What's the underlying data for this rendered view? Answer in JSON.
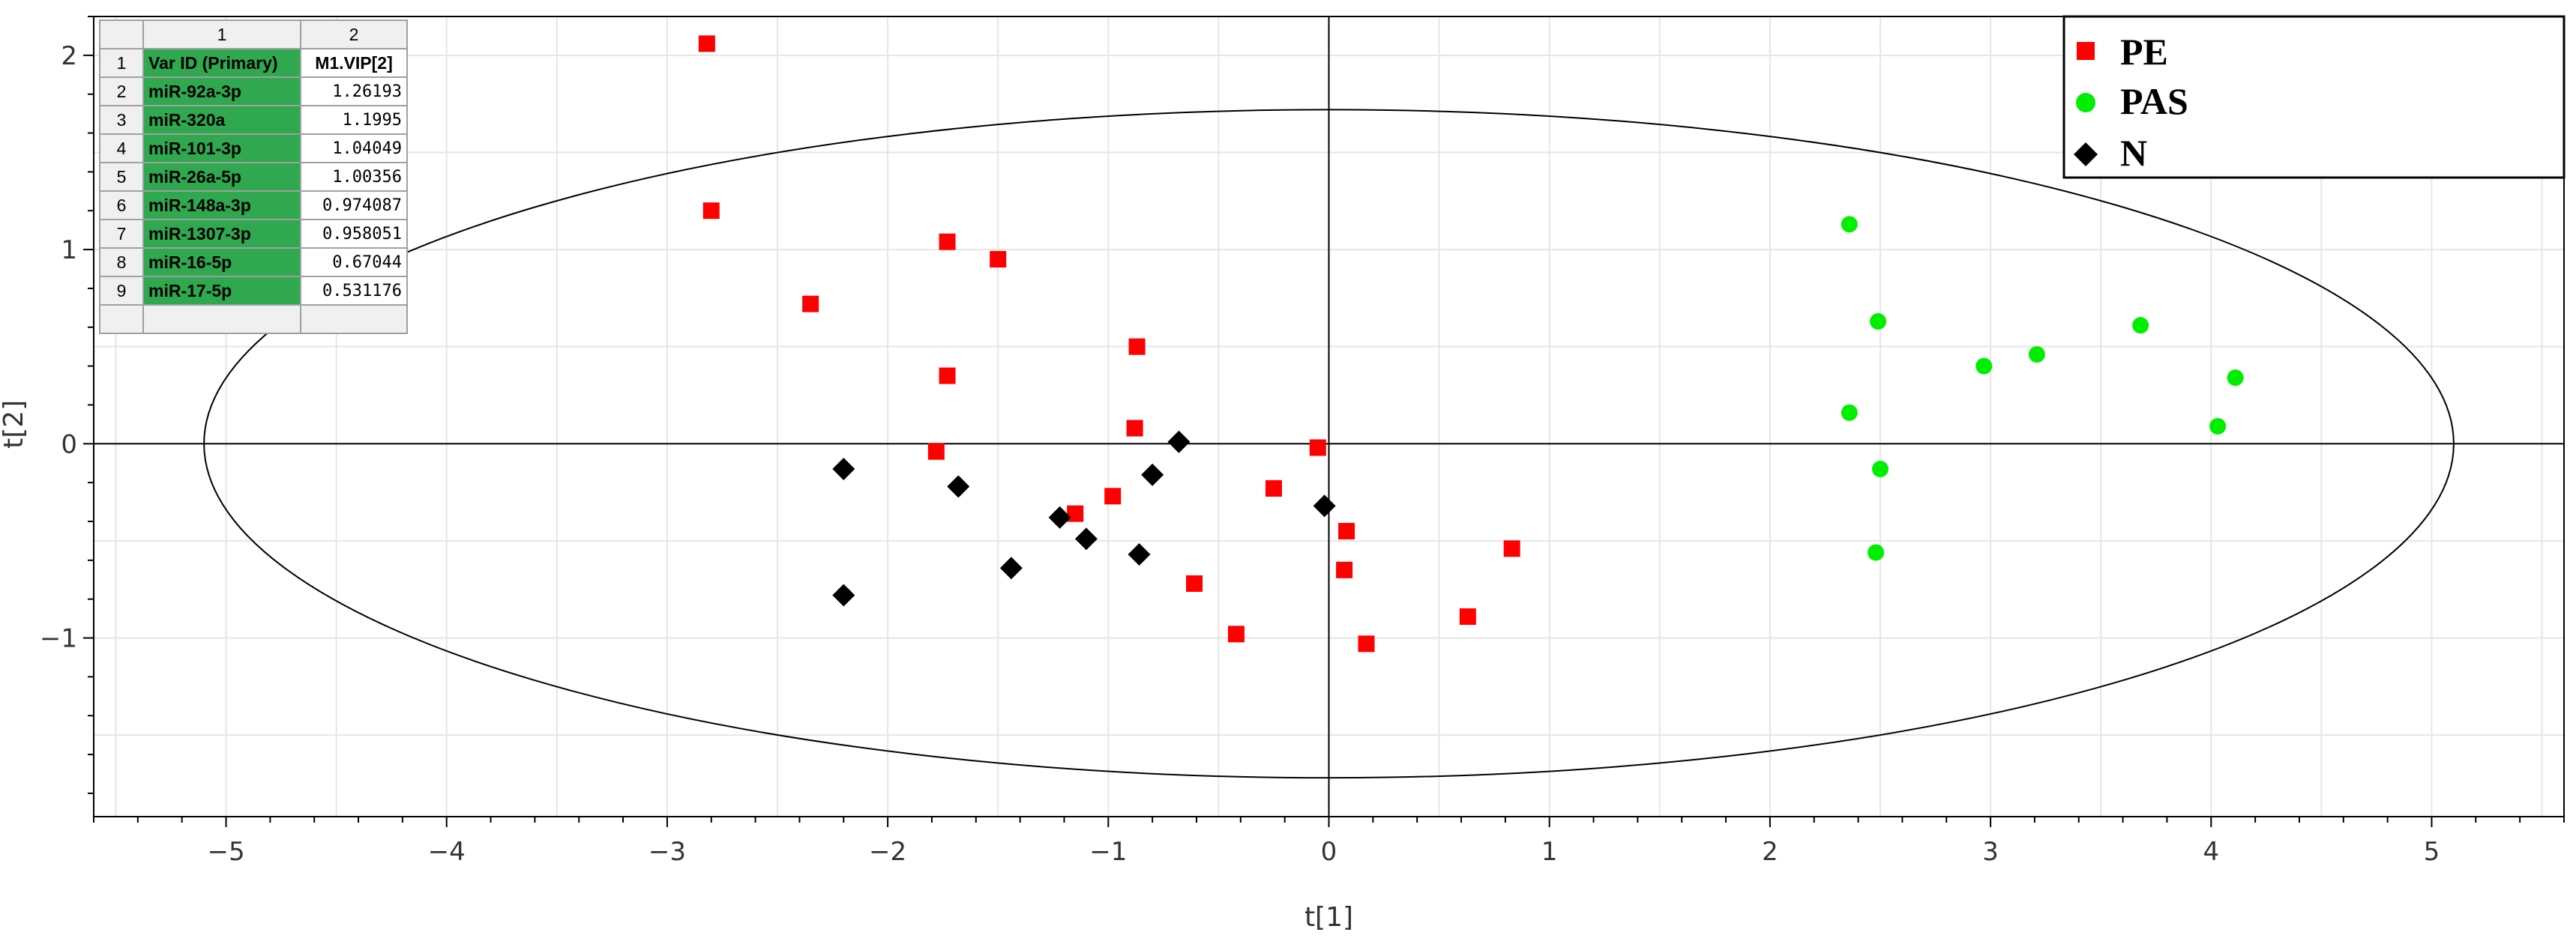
{
  "chart_data": {
    "type": "scatter",
    "xlabel": "t[1]",
    "ylabel": "t[2]",
    "xlim": [
      -5.6,
      5.6
    ],
    "ylim": [
      -1.92,
      2.2
    ],
    "x_ticks": [
      -5,
      -4,
      -3,
      -2,
      -1,
      0,
      1,
      2,
      3,
      4,
      5
    ],
    "y_ticks": [
      -1,
      0,
      1,
      2
    ],
    "x_tick_labels": [
      "−5",
      "−4",
      "−3",
      "−2",
      "−1",
      "0",
      "1",
      "2",
      "3",
      "4",
      "5"
    ],
    "y_tick_labels": [
      "−1",
      "0",
      "1",
      "2"
    ],
    "grid": true,
    "ellipse": {
      "rx": 5.1,
      "ry": 1.72
    },
    "legend_position": "top-right",
    "series": [
      {
        "name": "PE",
        "marker": "square",
        "color": "#ff0000",
        "points": [
          [
            -2.82,
            2.06
          ],
          [
            -2.8,
            1.2
          ],
          [
            -2.35,
            0.72
          ],
          [
            -1.73,
            1.04
          ],
          [
            -1.5,
            0.95
          ],
          [
            -1.73,
            0.35
          ],
          [
            -1.78,
            -0.04
          ],
          [
            -0.87,
            0.5
          ],
          [
            -0.88,
            0.08
          ],
          [
            -1.15,
            -0.36
          ],
          [
            -0.98,
            -0.27
          ],
          [
            -0.61,
            -0.72
          ],
          [
            -0.42,
            -0.98
          ],
          [
            -0.25,
            -0.23
          ],
          [
            -0.05,
            -0.02
          ],
          [
            0.08,
            -0.45
          ],
          [
            0.07,
            -0.65
          ],
          [
            0.17,
            -1.03
          ],
          [
            0.63,
            -0.89
          ],
          [
            0.83,
            -0.54
          ]
        ]
      },
      {
        "name": "PAS",
        "marker": "circle",
        "color": "#00ee00",
        "points": [
          [
            2.36,
            1.13
          ],
          [
            2.49,
            0.63
          ],
          [
            2.36,
            0.16
          ],
          [
            2.5,
            -0.13
          ],
          [
            2.48,
            -0.56
          ],
          [
            2.97,
            0.4
          ],
          [
            3.21,
            0.46
          ],
          [
            3.68,
            0.61
          ],
          [
            4.11,
            0.34
          ],
          [
            4.03,
            0.09
          ]
        ]
      },
      {
        "name": "N",
        "marker": "diamond",
        "color": "#000000",
        "points": [
          [
            -2.2,
            -0.13
          ],
          [
            -1.68,
            -0.22
          ],
          [
            -2.2,
            -0.78
          ],
          [
            -1.44,
            -0.64
          ],
          [
            -1.22,
            -0.38
          ],
          [
            -1.1,
            -0.49
          ],
          [
            -0.86,
            -0.57
          ],
          [
            -0.8,
            -0.16
          ],
          [
            -0.68,
            0.01
          ],
          [
            -0.02,
            -0.32
          ]
        ]
      }
    ]
  },
  "vip_table": {
    "col_numbers": [
      "1",
      "2"
    ],
    "header": {
      "row": "1",
      "col1": "Var ID (Primary)",
      "col2": "M1.VIP[2]"
    },
    "rows": [
      {
        "row": "2",
        "id": "miR-92a-3p",
        "vip": "1.26193"
      },
      {
        "row": "3",
        "id": "miR-320a",
        "vip": "1.1995"
      },
      {
        "row": "4",
        "id": "miR-101-3p",
        "vip": "1.04049"
      },
      {
        "row": "5",
        "id": "miR-26a-5p",
        "vip": "1.00356"
      },
      {
        "row": "6",
        "id": "miR-148a-3p",
        "vip": "0.974087"
      },
      {
        "row": "7",
        "id": "miR-1307-3p",
        "vip": "0.958051"
      },
      {
        "row": "8",
        "id": "miR-16-5p",
        "vip": "0.67044"
      },
      {
        "row": "9",
        "id": "miR-17-5p",
        "vip": "0.531176"
      }
    ]
  }
}
